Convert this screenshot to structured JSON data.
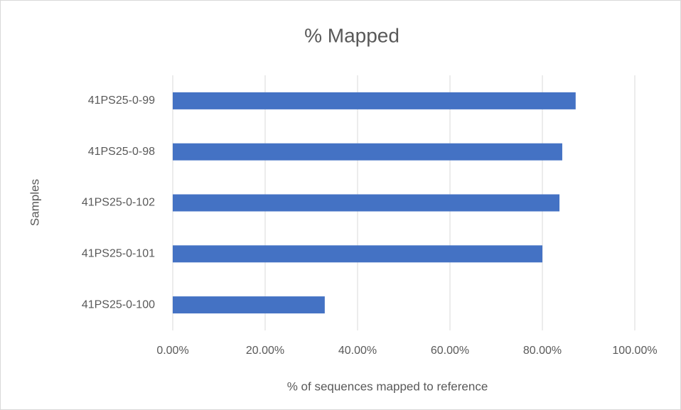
{
  "chart_data": {
    "type": "bar",
    "orientation": "horizontal",
    "title": "% Mapped",
    "xlabel": "% of sequences mapped to reference",
    "ylabel": "Samples",
    "categories": [
      "41PS25-0-99",
      "41PS25-0-98",
      "41PS25-0-102",
      "41PS25-0-101",
      "41PS25-0-100"
    ],
    "values": [
      87.2,
      84.3,
      83.7,
      80.0,
      32.9
    ],
    "color": "#4472c4",
    "xlim": [
      0,
      100
    ],
    "xticks": [
      {
        "value": 0,
        "label": "0.00%"
      },
      {
        "value": 20,
        "label": "20.00%"
      },
      {
        "value": 40,
        "label": "40.00%"
      },
      {
        "value": 60,
        "label": "60.00%"
      },
      {
        "value": 80,
        "label": "80.00%"
      },
      {
        "value": 100,
        "label": "100.00%"
      }
    ],
    "grid": true
  }
}
